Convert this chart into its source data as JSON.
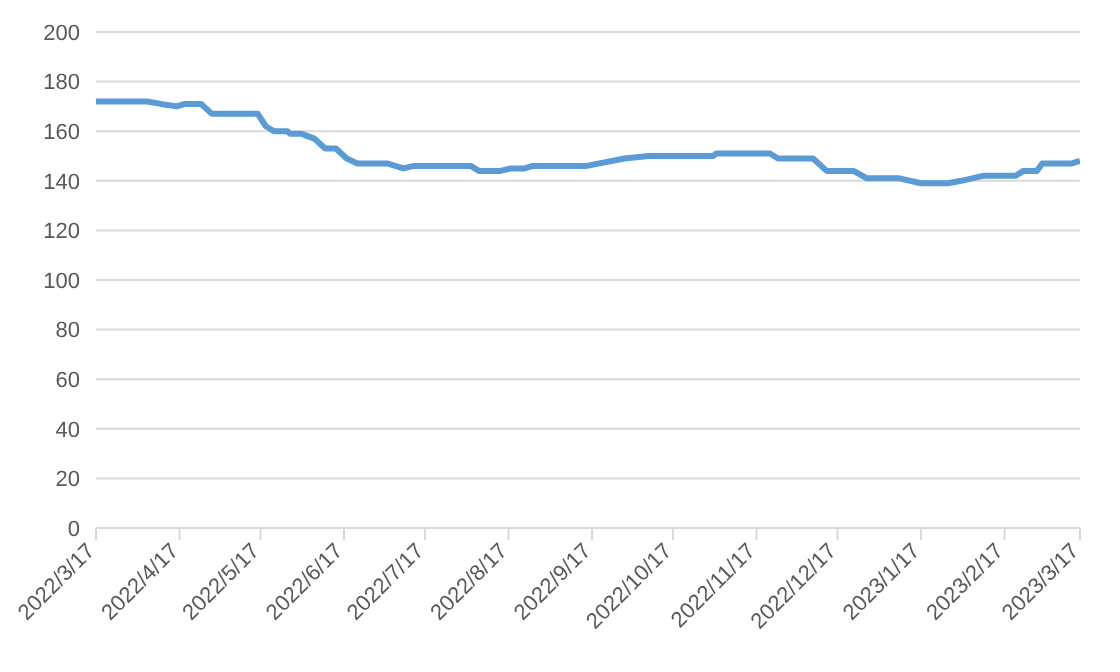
{
  "chart_data": {
    "type": "line",
    "x": [
      "2022-03-17",
      "2022-04-05",
      "2022-04-10",
      "2022-04-16",
      "2022-04-19",
      "2022-04-25",
      "2022-04-29",
      "2022-05-16",
      "2022-05-19",
      "2022-05-22",
      "2022-05-27",
      "2022-05-28",
      "2022-06-01",
      "2022-06-06",
      "2022-06-10",
      "2022-06-14",
      "2022-06-18",
      "2022-06-22",
      "2022-07-03",
      "2022-07-09",
      "2022-07-13",
      "2022-08-03",
      "2022-08-06",
      "2022-08-14",
      "2022-08-18",
      "2022-08-23",
      "2022-08-26",
      "2022-09-15",
      "2022-09-29",
      "2022-10-08",
      "2022-11-01",
      "2022-11-02",
      "2022-11-22",
      "2022-11-25",
      "2022-12-08",
      "2022-12-13",
      "2022-12-23",
      "2022-12-28",
      "2023-01-09",
      "2023-01-17",
      "2023-01-27",
      "2023-02-01",
      "2023-02-09",
      "2023-02-21",
      "2023-02-24",
      "2023-03-01",
      "2023-03-03",
      "2023-03-14",
      "2023-03-17"
    ],
    "series": [
      {
        "color": "#5b9bd5",
        "values": [
          172,
          172,
          171,
          170,
          171,
          171,
          167,
          167,
          162,
          160,
          160,
          159,
          159,
          157,
          153,
          153,
          149,
          147,
          147,
          145,
          146,
          146,
          144,
          144,
          145,
          145,
          146,
          146,
          149,
          150,
          150,
          151,
          151,
          149,
          149,
          144,
          144,
          141,
          141,
          139,
          139,
          140,
          142,
          142,
          144,
          144,
          147,
          147,
          148
        ]
      }
    ],
    "xlim": [
      "2022-03-17",
      "2023-03-17"
    ],
    "xticks": [
      {
        "value": "2022-03-17",
        "label": "2022/3/17"
      },
      {
        "value": "2022-04-17",
        "label": "2022/4/17"
      },
      {
        "value": "2022-05-17",
        "label": "2022/5/17"
      },
      {
        "value": "2022-06-17",
        "label": "2022/6/17"
      },
      {
        "value": "2022-07-17",
        "label": "2022/7/17"
      },
      {
        "value": "2022-08-17",
        "label": "2022/8/17"
      },
      {
        "value": "2022-09-17",
        "label": "2022/9/17"
      },
      {
        "value": "2022-10-17",
        "label": "2022/10/17"
      },
      {
        "value": "2022-11-17",
        "label": "2022/11/17"
      },
      {
        "value": "2022-12-17",
        "label": "2022/12/17"
      },
      {
        "value": "2023-01-17",
        "label": "2023/1/17"
      },
      {
        "value": "2023-02-17",
        "label": "2023/2/17"
      },
      {
        "value": "2023-03-17",
        "label": "2023/3/17"
      }
    ],
    "ylim": [
      0,
      200
    ],
    "yticks": [
      0,
      20,
      40,
      60,
      80,
      100,
      120,
      140,
      160,
      180,
      200
    ],
    "grid": "y",
    "marker": "none",
    "line_style": "solid",
    "legend": false
  }
}
